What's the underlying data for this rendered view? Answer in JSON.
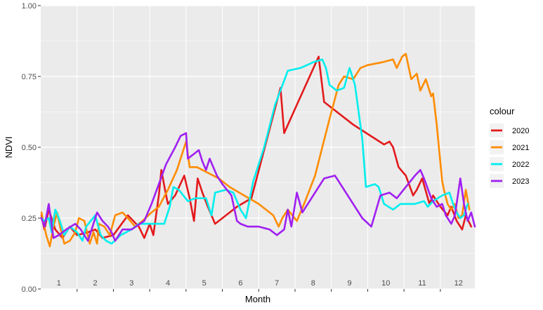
{
  "chart_data": {
    "type": "line",
    "title": "",
    "xlabel": "Month",
    "ylabel": "NDVI",
    "ylim": [
      0,
      1
    ],
    "xlim": [
      0.5,
      12.45
    ],
    "y_ticks": [
      0,
      0.25,
      0.5,
      0.75,
      1
    ],
    "y_tick_labels": [
      "0.00",
      "0.25",
      "0.50",
      "0.75",
      "1.00"
    ],
    "x_tick_labels": [
      "1",
      "2",
      "3",
      "4",
      "5",
      "6",
      "7",
      "8",
      "9",
      "10",
      "11",
      "12"
    ],
    "grid": true,
    "legend": {
      "title": "colour",
      "position": "right"
    },
    "colors": {
      "panel_bg": "#ebebeb",
      "grid": "#ffffff"
    },
    "series": [
      {
        "name": "2020",
        "color": "#e31a1c",
        "points": [
          [
            0.52,
            0.26
          ],
          [
            0.6,
            0.21
          ],
          [
            0.72,
            0.28
          ],
          [
            0.9,
            0.21
          ],
          [
            1.1,
            0.18
          ],
          [
            1.3,
            0.22
          ],
          [
            1.5,
            0.19
          ],
          [
            1.8,
            0.2
          ],
          [
            2.0,
            0.21
          ],
          [
            2.2,
            0.18
          ],
          [
            2.5,
            0.19
          ],
          [
            2.9,
            0.26
          ],
          [
            3.2,
            0.22
          ],
          [
            3.35,
            0.18
          ],
          [
            3.5,
            0.23
          ],
          [
            3.6,
            0.19
          ],
          [
            3.75,
            0.33
          ],
          [
            3.82,
            0.42
          ],
          [
            3.92,
            0.35
          ],
          [
            4.0,
            0.3
          ],
          [
            4.2,
            0.33
          ],
          [
            4.45,
            0.4
          ],
          [
            4.6,
            0.32
          ],
          [
            4.72,
            0.24
          ],
          [
            4.82,
            0.39
          ],
          [
            4.95,
            0.34
          ],
          [
            5.1,
            0.29
          ],
          [
            5.3,
            0.23
          ],
          [
            5.6,
            0.26
          ],
          [
            5.9,
            0.29
          ],
          [
            6.3,
            0.32
          ],
          [
            7.1,
            0.71
          ],
          [
            7.2,
            0.55
          ],
          [
            7.55,
            0.65
          ],
          [
            8.15,
            0.82
          ],
          [
            8.3,
            0.66
          ],
          [
            9.1,
            0.58
          ],
          [
            9.95,
            0.51
          ],
          [
            10.1,
            0.52
          ],
          [
            10.2,
            0.5
          ],
          [
            10.35,
            0.43
          ],
          [
            10.55,
            0.4
          ],
          [
            10.75,
            0.33
          ],
          [
            10.85,
            0.35
          ],
          [
            11.0,
            0.39
          ],
          [
            11.2,
            0.3
          ],
          [
            11.3,
            0.33
          ],
          [
            11.5,
            0.29
          ],
          [
            11.7,
            0.26
          ],
          [
            11.8,
            0.29
          ],
          [
            11.95,
            0.24
          ],
          [
            12.1,
            0.21
          ],
          [
            12.2,
            0.26
          ],
          [
            12.35,
            0.22
          ]
        ]
      },
      {
        "name": "2021",
        "color": "#ff8c00",
        "points": [
          [
            0.52,
            0.27
          ],
          [
            0.65,
            0.19
          ],
          [
            0.75,
            0.15
          ],
          [
            0.85,
            0.22
          ],
          [
            0.95,
            0.27
          ],
          [
            1.05,
            0.21
          ],
          [
            1.15,
            0.16
          ],
          [
            1.3,
            0.17
          ],
          [
            1.45,
            0.2
          ],
          [
            1.55,
            0.25
          ],
          [
            1.7,
            0.24
          ],
          [
            1.85,
            0.16
          ],
          [
            1.95,
            0.2
          ],
          [
            2.05,
            0.16
          ],
          [
            2.1,
            0.23
          ],
          [
            2.25,
            0.22
          ],
          [
            2.4,
            0.19
          ],
          [
            2.55,
            0.26
          ],
          [
            2.75,
            0.27
          ],
          [
            2.9,
            0.25
          ],
          [
            3.1,
            0.22
          ],
          [
            3.3,
            0.24
          ],
          [
            3.55,
            0.27
          ],
          [
            3.75,
            0.29
          ],
          [
            4.0,
            0.35
          ],
          [
            4.25,
            0.42
          ],
          [
            4.5,
            0.52
          ],
          [
            4.6,
            0.43
          ],
          [
            4.8,
            0.43
          ],
          [
            5.1,
            0.41
          ],
          [
            5.4,
            0.39
          ],
          [
            5.7,
            0.36
          ],
          [
            6.1,
            0.33
          ],
          [
            6.5,
            0.3
          ],
          [
            6.9,
            0.26
          ],
          [
            7.05,
            0.22
          ],
          [
            7.15,
            0.25
          ],
          [
            7.3,
            0.28
          ],
          [
            7.55,
            0.24
          ],
          [
            7.75,
            0.3
          ],
          [
            8.05,
            0.4
          ],
          [
            8.45,
            0.6
          ],
          [
            8.7,
            0.72
          ],
          [
            8.85,
            0.75
          ],
          [
            9.1,
            0.74
          ],
          [
            9.3,
            0.78
          ],
          [
            9.5,
            0.79
          ],
          [
            9.9,
            0.8
          ],
          [
            10.2,
            0.81
          ],
          [
            10.3,
            0.78
          ],
          [
            10.45,
            0.82
          ],
          [
            10.55,
            0.83
          ],
          [
            10.7,
            0.74
          ],
          [
            10.85,
            0.76
          ],
          [
            10.95,
            0.7
          ],
          [
            11.1,
            0.74
          ],
          [
            11.25,
            0.68
          ],
          [
            11.3,
            0.69
          ],
          [
            11.4,
            0.58
          ],
          [
            11.55,
            0.38
          ],
          [
            11.6,
            0.35
          ],
          [
            11.7,
            0.3
          ],
          [
            11.8,
            0.28
          ],
          [
            11.9,
            0.3
          ],
          [
            12.0,
            0.25
          ],
          [
            12.1,
            0.26
          ],
          [
            12.2,
            0.35
          ],
          [
            12.3,
            0.28
          ]
        ]
      },
      {
        "name": "2022",
        "color": "#00eeee",
        "points": [
          [
            0.52,
            0.25
          ],
          [
            0.6,
            0.24
          ],
          [
            0.72,
            0.25
          ],
          [
            0.8,
            0.2
          ],
          [
            0.9,
            0.28
          ],
          [
            1.0,
            0.25
          ],
          [
            1.15,
            0.19
          ],
          [
            1.3,
            0.22
          ],
          [
            1.5,
            0.2
          ],
          [
            1.65,
            0.17
          ],
          [
            1.75,
            0.22
          ],
          [
            2.0,
            0.26
          ],
          [
            2.15,
            0.19
          ],
          [
            2.3,
            0.17
          ],
          [
            2.45,
            0.16
          ],
          [
            2.7,
            0.19
          ],
          [
            3.0,
            0.21
          ],
          [
            3.2,
            0.23
          ],
          [
            3.5,
            0.23
          ],
          [
            3.9,
            0.23
          ],
          [
            4.05,
            0.29
          ],
          [
            4.15,
            0.36
          ],
          [
            4.3,
            0.35
          ],
          [
            4.55,
            0.31
          ],
          [
            4.75,
            0.32
          ],
          [
            5.05,
            0.32
          ],
          [
            5.2,
            0.26
          ],
          [
            5.3,
            0.34
          ],
          [
            5.6,
            0.35
          ],
          [
            5.8,
            0.34
          ],
          [
            6.0,
            0.28
          ],
          [
            6.15,
            0.25
          ],
          [
            6.35,
            0.38
          ],
          [
            6.65,
            0.5
          ],
          [
            6.95,
            0.65
          ],
          [
            7.3,
            0.77
          ],
          [
            7.65,
            0.78
          ],
          [
            8.0,
            0.8
          ],
          [
            8.25,
            0.81
          ],
          [
            8.35,
            0.78
          ],
          [
            8.45,
            0.72
          ],
          [
            8.65,
            0.7
          ],
          [
            8.85,
            0.71
          ],
          [
            9.0,
            0.78
          ],
          [
            9.15,
            0.72
          ],
          [
            9.35,
            0.53
          ],
          [
            9.45,
            0.36
          ],
          [
            9.7,
            0.37
          ],
          [
            9.8,
            0.36
          ],
          [
            9.95,
            0.3
          ],
          [
            10.2,
            0.28
          ],
          [
            10.4,
            0.3
          ],
          [
            10.8,
            0.3
          ],
          [
            11.05,
            0.31
          ],
          [
            11.15,
            0.29
          ],
          [
            11.3,
            0.31
          ],
          [
            11.55,
            0.33
          ],
          [
            11.75,
            0.34
          ],
          [
            11.85,
            0.3
          ],
          [
            11.95,
            0.27
          ],
          [
            12.05,
            0.25
          ],
          [
            12.15,
            0.26
          ],
          [
            12.25,
            0.3
          ]
        ]
      },
      {
        "name": "2023",
        "color": "#a020f0",
        "points": [
          [
            0.52,
            0.25
          ],
          [
            0.6,
            0.22
          ],
          [
            0.72,
            0.3
          ],
          [
            0.85,
            0.18
          ],
          [
            1.0,
            0.19
          ],
          [
            1.2,
            0.21
          ],
          [
            1.45,
            0.23
          ],
          [
            1.6,
            0.21
          ],
          [
            1.8,
            0.17
          ],
          [
            1.9,
            0.21
          ],
          [
            2.05,
            0.27
          ],
          [
            2.2,
            0.24
          ],
          [
            2.35,
            0.22
          ],
          [
            2.45,
            0.2
          ],
          [
            2.55,
            0.17
          ],
          [
            2.75,
            0.21
          ],
          [
            3.0,
            0.21
          ],
          [
            3.35,
            0.24
          ],
          [
            3.55,
            0.3
          ],
          [
            3.75,
            0.37
          ],
          [
            3.95,
            0.44
          ],
          [
            4.2,
            0.5
          ],
          [
            4.35,
            0.54
          ],
          [
            4.5,
            0.55
          ],
          [
            4.55,
            0.46
          ],
          [
            4.75,
            0.48
          ],
          [
            4.85,
            0.49
          ],
          [
            4.95,
            0.45
          ],
          [
            5.05,
            0.42
          ],
          [
            5.15,
            0.46
          ],
          [
            5.25,
            0.43
          ],
          [
            5.35,
            0.4
          ],
          [
            5.5,
            0.37
          ],
          [
            5.75,
            0.33
          ],
          [
            5.9,
            0.24
          ],
          [
            6.0,
            0.23
          ],
          [
            6.2,
            0.22
          ],
          [
            6.5,
            0.22
          ],
          [
            6.8,
            0.21
          ],
          [
            7.0,
            0.19
          ],
          [
            7.2,
            0.21
          ],
          [
            7.3,
            0.28
          ],
          [
            7.4,
            0.22
          ],
          [
            7.55,
            0.34
          ],
          [
            7.7,
            0.27
          ],
          [
            8.0,
            0.33
          ],
          [
            8.3,
            0.39
          ],
          [
            8.6,
            0.4
          ],
          [
            9.0,
            0.32
          ],
          [
            9.35,
            0.25
          ],
          [
            9.6,
            0.22
          ],
          [
            9.85,
            0.33
          ],
          [
            10.1,
            0.34
          ],
          [
            10.3,
            0.32
          ],
          [
            10.55,
            0.36
          ],
          [
            10.8,
            0.4
          ],
          [
            10.95,
            0.42
          ],
          [
            11.05,
            0.39
          ],
          [
            11.25,
            0.32
          ],
          [
            11.4,
            0.29
          ],
          [
            11.55,
            0.3
          ],
          [
            11.65,
            0.26
          ],
          [
            11.8,
            0.23
          ],
          [
            11.9,
            0.26
          ],
          [
            12.05,
            0.39
          ],
          [
            12.15,
            0.3
          ],
          [
            12.25,
            0.24
          ],
          [
            12.35,
            0.27
          ],
          [
            12.45,
            0.22
          ]
        ]
      }
    ]
  }
}
